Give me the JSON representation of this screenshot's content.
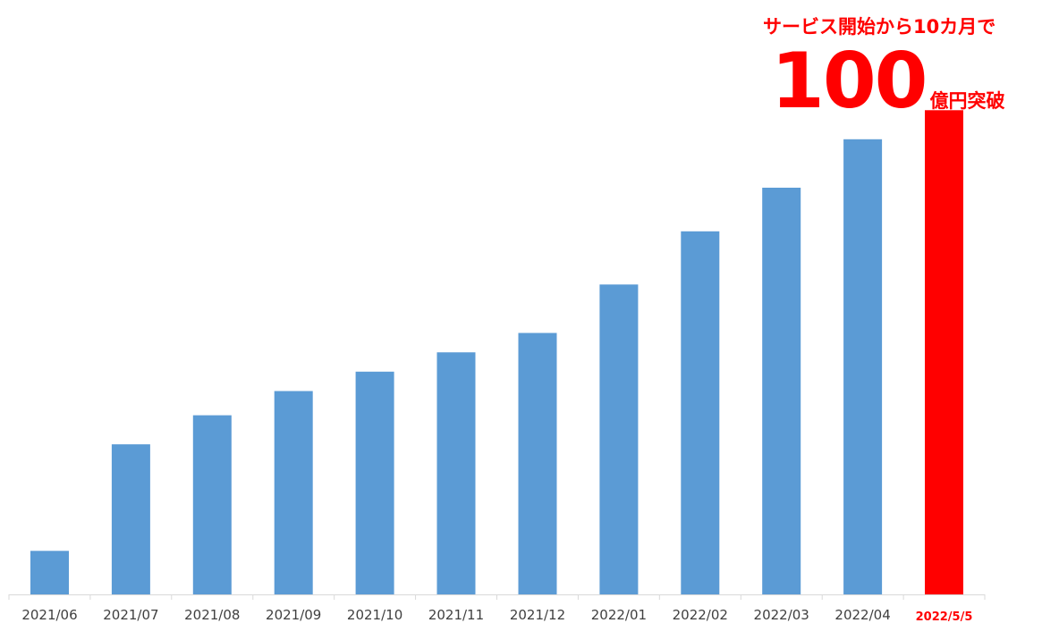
{
  "headline": {
    "subtitle": "サービス開始から10カ月で",
    "number": "100",
    "unit": "億円突破"
  },
  "colors": {
    "bar": "#5b9bd5",
    "highlight": "#ff0000",
    "axis": "#d9d9d9",
    "tick_label": "#404040"
  },
  "chart_data": {
    "type": "bar",
    "categories": [
      "2021/06",
      "2021/07",
      "2021/08",
      "2021/09",
      "2021/10",
      "2021/11",
      "2021/12",
      "2022/01",
      "2022/02",
      "2022/03",
      "2022/04",
      "2022/5/5"
    ],
    "values": [
      9,
      31,
      37,
      42,
      46,
      50,
      54,
      64,
      75,
      84,
      94,
      100
    ],
    "highlight_index": 11,
    "ylim": [
      0,
      108
    ],
    "grid": false,
    "title": "",
    "xlabel": "",
    "ylabel": ""
  }
}
